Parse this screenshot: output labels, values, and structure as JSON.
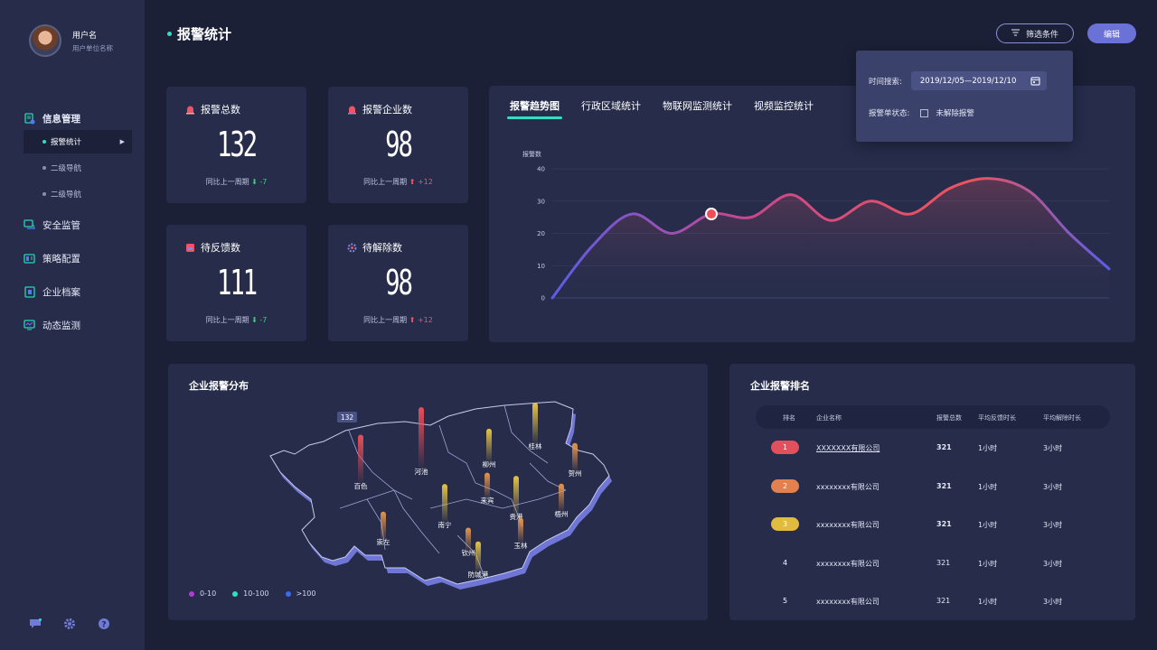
{
  "user": {
    "name": "用户名",
    "unit": "用户单位名称"
  },
  "sidebar": {
    "group": {
      "label": "信息管理",
      "icon": "info-doc-icon"
    },
    "subs": [
      {
        "label": "报警统计",
        "active": true
      },
      {
        "label": "二级导航",
        "active": false
      },
      {
        "label": "二级导航",
        "active": false
      }
    ],
    "items": [
      {
        "label": "安全监管",
        "icon": "safety-icon"
      },
      {
        "label": "策略配置",
        "icon": "strategy-icon"
      },
      {
        "label": "企业档案",
        "icon": "enterprise-icon"
      },
      {
        "label": "动态监测",
        "icon": "monitor-icon"
      }
    ],
    "footer_icons": [
      "message-icon",
      "settings-icon",
      "help-icon"
    ]
  },
  "header": {
    "title": "报警统计",
    "filter_label": "筛选条件",
    "edit_label": "编辑"
  },
  "filter": {
    "time_label": "时间搜索:",
    "date_range": "2019/12/05—2019/12/10",
    "status_label": "报警单状态:",
    "checkbox_label": "未解除报警"
  },
  "stats": [
    {
      "label": "报警总数",
      "value": "132",
      "compare": "同比上一周期",
      "delta": "-7",
      "direction": "down",
      "icon": "alarm-icon"
    },
    {
      "label": "报警企业数",
      "value": "98",
      "compare": "同比上一周期",
      "delta": "+12",
      "direction": "up",
      "icon": "enterprise-alarm-icon"
    },
    {
      "label": "待反馈数",
      "value": "111",
      "compare": "同比上一周期",
      "delta": "-7",
      "direction": "down",
      "icon": "feedback-icon"
    },
    {
      "label": "待解除数",
      "value": "98",
      "compare": "同比上一周期",
      "delta": "+12",
      "direction": "up",
      "icon": "release-icon"
    }
  ],
  "trend": {
    "tabs": [
      "报警趋势图",
      "行政区域统计",
      "物联网监测统计",
      "视频监控统计"
    ],
    "active_tab": 0
  },
  "chart_data": {
    "type": "area",
    "ylabel": "报警数",
    "ylim": [
      0,
      40
    ],
    "yticks": [
      0,
      10,
      20,
      30,
      40
    ],
    "grid": true,
    "y": [
      0,
      16,
      26,
      20,
      26,
      25,
      32,
      24,
      30,
      26,
      34,
      37,
      33,
      20,
      9
    ],
    "highlight_index": 4,
    "line_gradient": [
      "#5b5de8",
      "#c8488d",
      "#f0545c"
    ]
  },
  "map": {
    "title": "企业报警分布",
    "badge": "132",
    "cities": [
      "百色",
      "河池",
      "柳州",
      "桂林",
      "贺州",
      "来宾",
      "梧州",
      "南宁",
      "贵港",
      "崇左",
      "钦州",
      "玉林",
      "防城港"
    ],
    "city_bar_levels": [
      0.75,
      1.0,
      0.45,
      0.6,
      0.35,
      0.3,
      0.35,
      0.55,
      0.55,
      0.35,
      0.25,
      0.3,
      0.4
    ],
    "city_bar_colors": [
      "#e94e5a",
      "#e94e5a",
      "#e7c548",
      "#e7c548",
      "#e8964e",
      "#e8964e",
      "#e8964e",
      "#e7c548",
      "#e7c548",
      "#e8964e",
      "#e8964e",
      "#e8964e",
      "#e7c548"
    ],
    "legend": [
      {
        "label": "0-10",
        "color": "#b43ad6"
      },
      {
        "label": "10-100",
        "color": "#2de0c2"
      },
      {
        "label": ">100",
        "color": "#3a6af0"
      }
    ]
  },
  "ranking": {
    "title": "企业报警排名",
    "columns": [
      "排名",
      "企业名称",
      "报警总数",
      "平均反馈时长",
      "平均解除时长"
    ],
    "rows": [
      {
        "rank": "1",
        "company": "XXXXXXX有限公司",
        "total": "321",
        "feedback": "1小时",
        "release": "3小时",
        "badge_color": "#e24f5d"
      },
      {
        "rank": "2",
        "company": "xxxxxxxx有限公司",
        "total": "321",
        "feedback": "1小时",
        "release": "3小时",
        "badge_color": "#e2814f"
      },
      {
        "rank": "3",
        "company": "xxxxxxxx有限公司",
        "total": "321",
        "feedback": "1小时",
        "release": "3小时",
        "badge_color": "#e1bb3f"
      },
      {
        "rank": "4",
        "company": "xxxxxxxx有限公司",
        "total": "321",
        "feedback": "1小时",
        "release": "3小时",
        "badge_color": ""
      },
      {
        "rank": "5",
        "company": "xxxxxxxx有限公司",
        "total": "321",
        "feedback": "1小时",
        "release": "3小时",
        "badge_color": ""
      }
    ]
  }
}
